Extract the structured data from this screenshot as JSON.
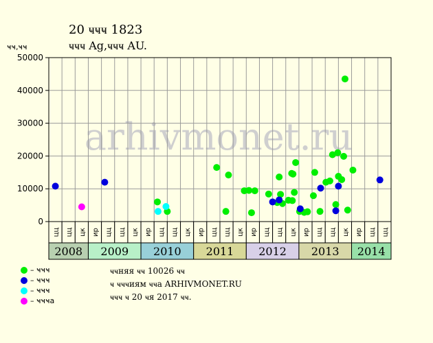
{
  "header": {
    "title": "20 ҹҹҹ 1823",
    "subtitle": "ҹҹҹ Ag,ҹҹҹ AU.",
    "y_unit": "ҹҹ,ҹҹ"
  },
  "watermark": "arhivmonet.ru",
  "notes": [
    "ҹҹняя ҹҹ 10026 ҹҹ",
    "ҹ ҹҹҹиям ҹҹа ARHIVMONET.RU",
    "ҹҹҹ ҹ 20 ҹя 2017 ҹҹ."
  ],
  "colors": {
    "background": "#ffffe6",
    "green": "#00ee00",
    "blue": "#0000dd",
    "cyan": "#00ffff",
    "magenta": "#ff00ff"
  },
  "chart_data": {
    "type": "scatter",
    "title": "20 ҹҹҹ 1823",
    "ylabel": "ҹҹ,ҹҹ",
    "ylim": [
      0,
      50000
    ],
    "yticks": [
      0,
      10000,
      20000,
      30000,
      40000,
      50000
    ],
    "grid": true,
    "legend_position": "bottom-left",
    "years": [
      {
        "label": "2008",
        "quarters": 3,
        "color": "#b8d0b0"
      },
      {
        "label": "2009",
        "quarters": 4,
        "color": "#b8f0c8"
      },
      {
        "label": "2010",
        "quarters": 4,
        "color": "#98d0d8"
      },
      {
        "label": "2011",
        "quarters": 4,
        "color": "#d8d898"
      },
      {
        "label": "2012",
        "quarters": 4,
        "color": "#d8d0e8"
      },
      {
        "label": "2013",
        "quarters": 4,
        "color": "#d8d8a8"
      },
      {
        "label": "2014",
        "quarters": 3,
        "color": "#98e0a8"
      }
    ],
    "quarter_labels": [
      "цц",
      "цц",
      "цк",
      "ир",
      "цц",
      "цц",
      "цк",
      "ир",
      "цц",
      "цц",
      "цк",
      "ир",
      "цц",
      "цц",
      "цк",
      "ир",
      "цц",
      "цц",
      "цк",
      "ир",
      "цц",
      "цц",
      "цк",
      "ир",
      "цц",
      "цц"
    ],
    "series": [
      {
        "name": "ҹҹҹ",
        "color": "#00ee00",
        "points": [
          [
            7.75,
            6000
          ],
          [
            8.5,
            3100
          ],
          [
            12.25,
            16500
          ],
          [
            12.95,
            3100
          ],
          [
            13.15,
            14200
          ],
          [
            14.35,
            9400
          ],
          [
            14.7,
            9500
          ],
          [
            14.9,
            2700
          ],
          [
            15.15,
            9400
          ],
          [
            16.2,
            8400
          ],
          [
            16.85,
            5800
          ],
          [
            17.0,
            13600
          ],
          [
            17.1,
            8300
          ],
          [
            17.25,
            5500
          ],
          [
            17.7,
            6500
          ],
          [
            17.95,
            14700
          ],
          [
            18.0,
            6400
          ],
          [
            18.05,
            14500
          ],
          [
            18.15,
            8900
          ],
          [
            18.25,
            18000
          ],
          [
            18.55,
            3100
          ],
          [
            18.9,
            2800
          ],
          [
            19.15,
            3000
          ],
          [
            19.6,
            7900
          ],
          [
            19.7,
            15000
          ],
          [
            20.1,
            3100
          ],
          [
            20.55,
            12000
          ],
          [
            20.85,
            12400
          ],
          [
            21.05,
            20400
          ],
          [
            21.3,
            5200
          ],
          [
            21.45,
            21000
          ],
          [
            21.5,
            13800
          ],
          [
            21.75,
            12800
          ],
          [
            21.9,
            19900
          ],
          [
            22.0,
            43500
          ],
          [
            22.2,
            3500
          ],
          [
            22.6,
            15700
          ]
        ]
      },
      {
        "name": "ҹҹҹ",
        "color": "#0000dd",
        "points": [
          [
            0.0,
            10800
          ],
          [
            3.75,
            12000
          ],
          [
            16.5,
            6000
          ],
          [
            17.0,
            6600
          ],
          [
            18.6,
            3900
          ],
          [
            20.15,
            10200
          ],
          [
            21.3,
            3300
          ],
          [
            21.5,
            10800
          ],
          [
            24.65,
            12700
          ]
        ]
      },
      {
        "name": "ҹҹҹ",
        "color": "#00ffff",
        "points": [
          [
            7.8,
            3100
          ],
          [
            8.4,
            4600
          ]
        ]
      },
      {
        "name": "ҹҹҹа",
        "color": "#ff00ff",
        "points": [
          [
            2.0,
            4500
          ]
        ]
      }
    ]
  }
}
